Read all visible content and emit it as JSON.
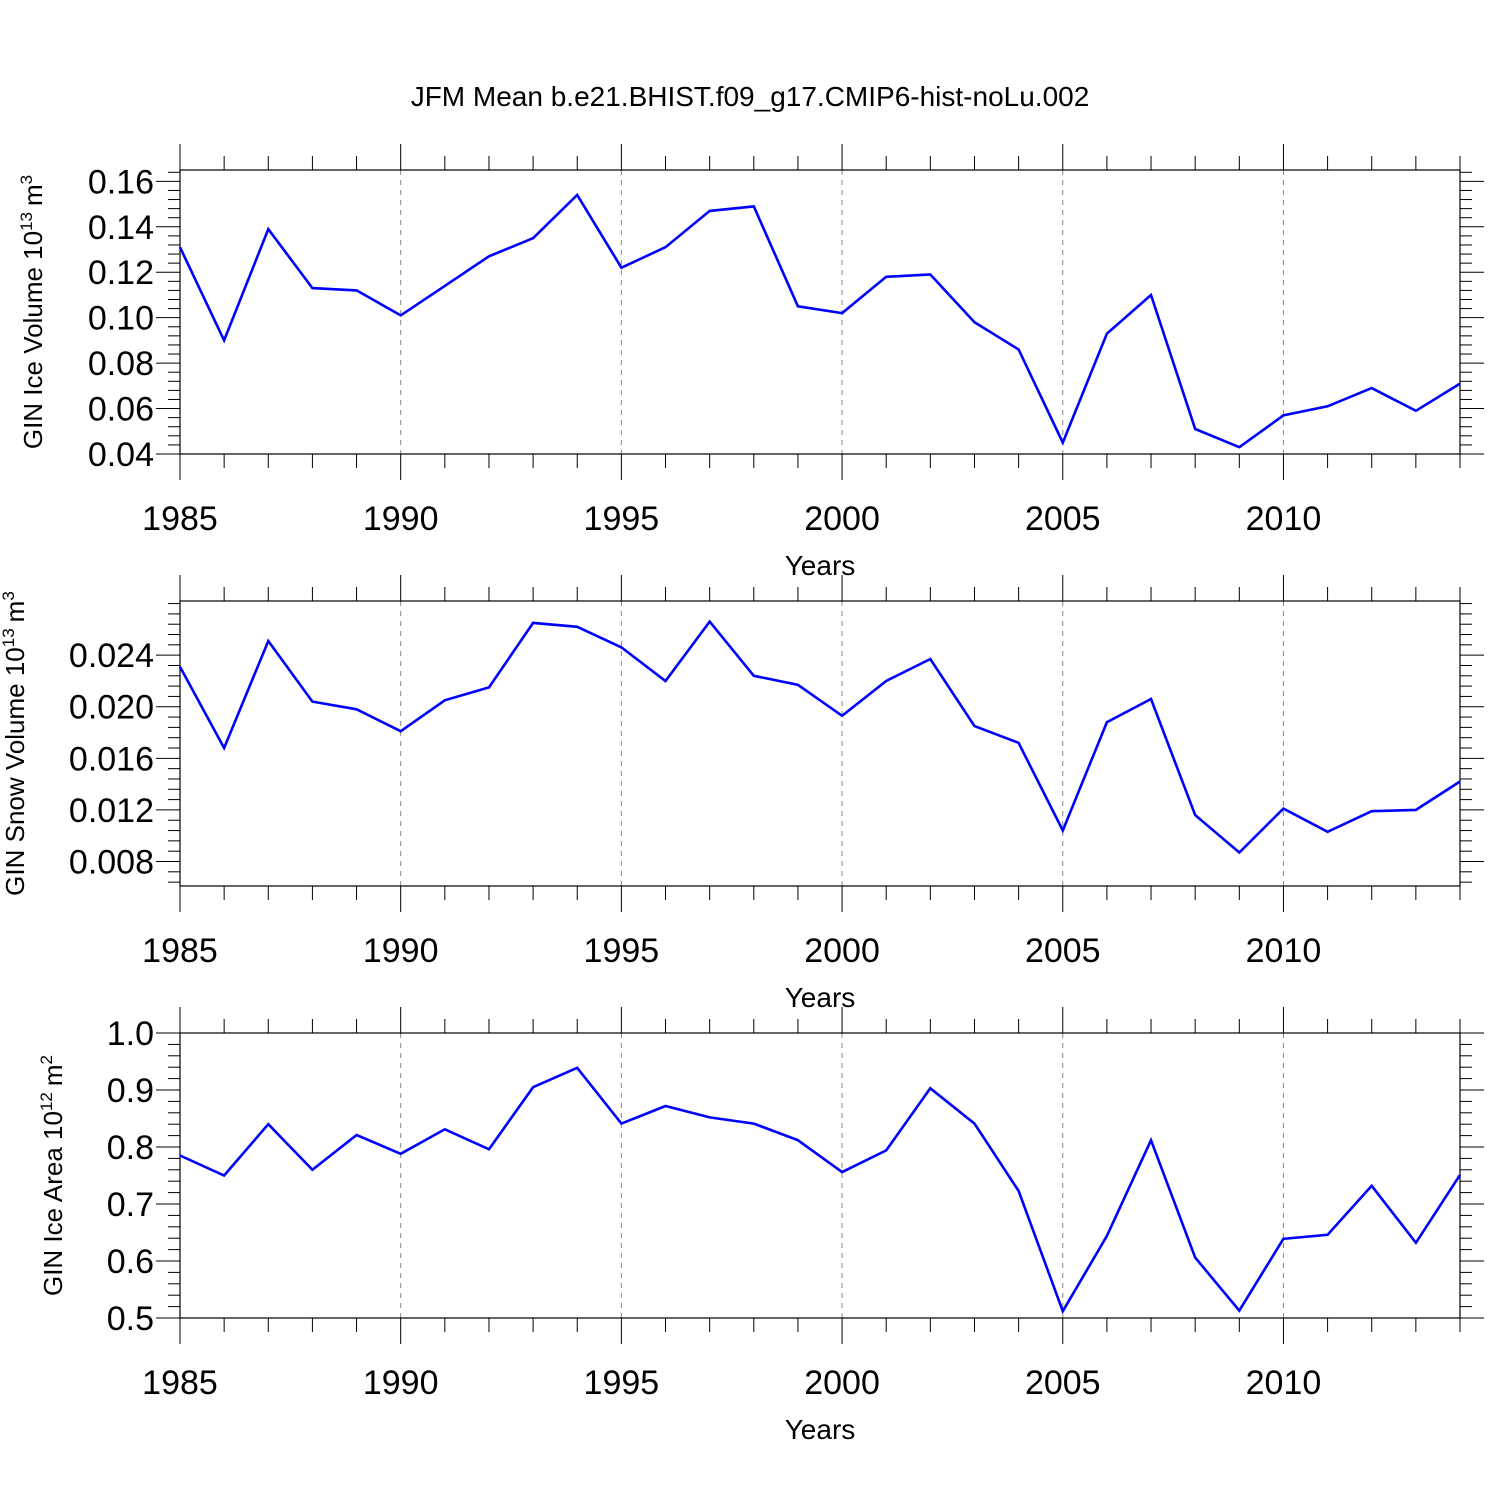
{
  "chart_data": {
    "title": "JFM Mean b.e21.BHIST.f09_g17.CMIP6-hist-noLu.002",
    "panels": [
      {
        "type": "line",
        "ylabel_main": "GIN Ice Volume 10",
        "ylabel_exp": "13",
        "ylabel_unit": "m",
        "ylabel_unit_exp": "3",
        "xlabel": "Years",
        "xlim": [
          1985,
          2014
        ],
        "ylim": [
          0.04,
          0.165
        ],
        "xticks": [
          1985,
          1990,
          1995,
          2000,
          2005,
          2010
        ],
        "yticks": [
          0.04,
          0.06,
          0.08,
          0.1,
          0.12,
          0.14,
          0.16
        ],
        "ytick_labels": [
          "0.04",
          "0.06",
          "0.08",
          "0.10",
          "0.12",
          "0.14",
          "0.16"
        ],
        "grid": "vertical dashed at major x ticks",
        "series": [
          {
            "color": "#0000ff",
            "x": [
              1985,
              1986,
              1987,
              1988,
              1989,
              1990,
              1991,
              1992,
              1993,
              1994,
              1995,
              1996,
              1997,
              1998,
              1999,
              2000,
              2001,
              2002,
              2003,
              2004,
              2005,
              2006,
              2007,
              2008,
              2009,
              2010,
              2011,
              2012,
              2013,
              2014
            ],
            "y": [
              0.131,
              0.09,
              0.139,
              0.113,
              0.112,
              0.101,
              0.114,
              0.127,
              0.135,
              0.154,
              0.122,
              0.131,
              0.147,
              0.149,
              0.105,
              0.102,
              0.118,
              0.119,
              0.098,
              0.086,
              0.045,
              0.093,
              0.11,
              0.051,
              0.043,
              0.057,
              0.061,
              0.069,
              0.059,
              0.071
            ]
          }
        ]
      },
      {
        "type": "line",
        "ylabel_main": "GIN Snow Volume 10",
        "ylabel_exp": "13",
        "ylabel_unit": "m",
        "ylabel_unit_exp": "3",
        "xlabel": "Years",
        "xlim": [
          1985,
          2014
        ],
        "ylim": [
          0.0061,
          0.0282
        ],
        "xticks": [
          1985,
          1990,
          1995,
          2000,
          2005,
          2010
        ],
        "yticks": [
          0.008,
          0.012,
          0.016,
          0.02,
          0.024
        ],
        "ytick_labels": [
          "0.008",
          "0.012",
          "0.016",
          "0.020",
          "0.024"
        ],
        "grid": "vertical dashed at major x ticks",
        "series": [
          {
            "color": "#0000ff",
            "x": [
              1985,
              1986,
              1987,
              1988,
              1989,
              1990,
              1991,
              1992,
              1993,
              1994,
              1995,
              1996,
              1997,
              1998,
              1999,
              2000,
              2001,
              2002,
              2003,
              2004,
              2005,
              2006,
              2007,
              2008,
              2009,
              2010,
              2011,
              2012,
              2013,
              2014
            ],
            "y": [
              0.0231,
              0.0168,
              0.0251,
              0.0204,
              0.0198,
              0.0181,
              0.0205,
              0.0215,
              0.0265,
              0.0262,
              0.0246,
              0.022,
              0.0266,
              0.0224,
              0.0217,
              0.0193,
              0.022,
              0.0237,
              0.0185,
              0.0172,
              0.0104,
              0.0188,
              0.0206,
              0.0116,
              0.0087,
              0.0121,
              0.0103,
              0.0119,
              0.012,
              0.0142
            ]
          }
        ]
      },
      {
        "type": "line",
        "ylabel_main": "GIN Ice Area 10",
        "ylabel_exp": "12",
        "ylabel_unit": "m",
        "ylabel_unit_exp": "2",
        "xlabel": "Years",
        "xlim": [
          1985,
          2014
        ],
        "ylim": [
          0.5,
          1.0
        ],
        "xticks": [
          1985,
          1990,
          1995,
          2000,
          2005,
          2010
        ],
        "yticks": [
          0.5,
          0.6,
          0.7,
          0.8,
          0.9,
          1.0
        ],
        "ytick_labels": [
          "0.5",
          "0.6",
          "0.7",
          "0.8",
          "0.9",
          "1.0"
        ],
        "grid": "vertical dashed at major x ticks",
        "series": [
          {
            "color": "#0000ff",
            "x": [
              1985,
              1986,
              1987,
              1988,
              1989,
              1990,
              1991,
              1992,
              1993,
              1994,
              1995,
              1996,
              1997,
              1998,
              1999,
              2000,
              2001,
              2002,
              2003,
              2004,
              2005,
              2006,
              2007,
              2008,
              2009,
              2010,
              2011,
              2012,
              2013,
              2014
            ],
            "y": [
              0.785,
              0.75,
              0.84,
              0.76,
              0.821,
              0.788,
              0.831,
              0.796,
              0.905,
              0.939,
              0.841,
              0.872,
              0.852,
              0.841,
              0.812,
              0.756,
              0.794,
              0.903,
              0.841,
              0.723,
              0.512,
              0.644,
              0.812,
              0.606,
              0.513,
              0.639,
              0.646,
              0.732,
              0.632,
              0.751
            ]
          }
        ]
      }
    ]
  }
}
